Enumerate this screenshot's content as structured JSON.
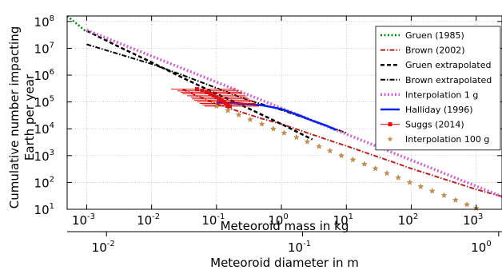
{
  "chart_data": {
    "type": "line",
    "ylabel_line1": "Cumulative number impacting",
    "ylabel_line2": "Earth per year",
    "xlabel": "Meteoroid mass in kg",
    "x2label": "Meteoroid diameter in m",
    "x_scale": "log",
    "y_scale": "log",
    "xlim": [
      0.0005,
      2500
    ],
    "ylim": [
      10,
      160000000
    ],
    "x2lim": [
      0.0063,
      1.04
    ],
    "grid": true,
    "legend_placement": "top-right",
    "x_ticks": [
      {
        "v": 0.001,
        "base": "10",
        "exp": "-3"
      },
      {
        "v": 0.01,
        "base": "10",
        "exp": "-2"
      },
      {
        "v": 0.1,
        "base": "10",
        "exp": "-1"
      },
      {
        "v": 1,
        "base": "10",
        "exp": "0"
      },
      {
        "v": 10,
        "base": "10",
        "exp": "1"
      },
      {
        "v": 100,
        "base": "10",
        "exp": "2"
      },
      {
        "v": 1000,
        "base": "10",
        "exp": "3"
      }
    ],
    "y_ticks": [
      {
        "v": 10,
        "base": "10",
        "exp": "1"
      },
      {
        "v": 100,
        "base": "10",
        "exp": "2"
      },
      {
        "v": 1000,
        "base": "10",
        "exp": "3"
      },
      {
        "v": 10000,
        "base": "10",
        "exp": "4"
      },
      {
        "v": 100000,
        "base": "10",
        "exp": "5"
      },
      {
        "v": 1000000,
        "base": "10",
        "exp": "6"
      },
      {
        "v": 10000000,
        "base": "10",
        "exp": "7"
      },
      {
        "v": 100000000,
        "base": "10",
        "exp": "8"
      }
    ],
    "x2_ticks": [
      {
        "v": 0.01,
        "base": "10",
        "exp": "-2"
      },
      {
        "v": 0.1,
        "base": "10",
        "exp": "-1"
      },
      {
        "v": 1,
        "base": "10",
        "exp": "0"
      }
    ],
    "series": [
      {
        "name": "Gruen (1985)",
        "color": "#008000",
        "style": "dotted",
        "width": 2.5,
        "x": [
          0.0005,
          0.00095
        ],
        "y": [
          160000000,
          45000000
        ]
      },
      {
        "name": "Brown (2002)",
        "color": "#b22222",
        "style": "dashdot",
        "width": 2,
        "x": [
          0.03,
          0.05,
          0.1,
          0.2,
          0.5,
          1,
          2,
          5,
          10,
          50,
          100,
          500,
          1000,
          2500
        ],
        "y": [
          300000,
          170000,
          85000,
          48000,
          24000,
          15000,
          8500,
          4000,
          2300,
          600,
          330,
          95,
          55,
          30
        ]
      },
      {
        "name": "Gruen extrapolated",
        "color": "#000000",
        "style": "dashed",
        "width": 2.5,
        "x": [
          0.001,
          0.003,
          0.01,
          0.03,
          0.1,
          0.3,
          1,
          3
        ],
        "y": [
          45000000,
          12000000,
          3000000,
          800000,
          200000,
          60000,
          15000,
          4000
        ]
      },
      {
        "name": "Brown extrapolated",
        "color": "#000000",
        "style": "dashdot",
        "width": 2,
        "x": [
          0.001,
          0.01,
          0.03,
          0.1,
          0.3,
          1,
          3,
          10
        ],
        "y": [
          14000000,
          2600000,
          1000000,
          330000,
          120000,
          50000,
          20000,
          7000
        ]
      },
      {
        "name": "Interpolation 1 g",
        "color": "#cc66cc",
        "style": "dotted",
        "width": 3.5,
        "x": [
          0.001,
          2500
        ],
        "y": [
          48000000,
          30
        ]
      },
      {
        "name": "Halliday (1996)",
        "color": "#0022ee",
        "style": "solid",
        "width": 2.5,
        "x": [
          0.1,
          0.2,
          0.5,
          1,
          2,
          3,
          5,
          7
        ],
        "y": [
          100000,
          90000,
          75000,
          55000,
          30000,
          20000,
          13000,
          9000
        ]
      },
      {
        "name": "Suggs (2014)",
        "color": "#dd1111",
        "style": "errorbar",
        "width": 1,
        "points": [
          {
            "x": 0.05,
            "y": 300000,
            "xerr_lo": 0.02,
            "xerr_hi": 0.2
          },
          {
            "x": 0.06,
            "y": 260000,
            "xerr_lo": 0.025,
            "xerr_hi": 0.22
          },
          {
            "x": 0.07,
            "y": 230000,
            "xerr_lo": 0.028,
            "xerr_hi": 0.25
          },
          {
            "x": 0.08,
            "y": 200000,
            "xerr_lo": 0.03,
            "xerr_hi": 0.25
          },
          {
            "x": 0.09,
            "y": 170000,
            "xerr_lo": 0.035,
            "xerr_hi": 0.28
          },
          {
            "x": 0.1,
            "y": 150000,
            "xerr_lo": 0.04,
            "xerr_hi": 0.3
          },
          {
            "x": 0.11,
            "y": 130000,
            "xerr_lo": 0.042,
            "xerr_hi": 0.32
          },
          {
            "x": 0.12,
            "y": 115000,
            "xerr_lo": 0.045,
            "xerr_hi": 0.35
          },
          {
            "x": 0.13,
            "y": 100000,
            "xerr_lo": 0.05,
            "xerr_hi": 0.38
          },
          {
            "x": 0.14,
            "y": 88000,
            "xerr_lo": 0.055,
            "xerr_hi": 0.4
          },
          {
            "x": 0.15,
            "y": 78000,
            "xerr_lo": 0.06,
            "xerr_hi": 0.42
          },
          {
            "x": 0.16,
            "y": 70000,
            "xerr_lo": 0.065,
            "xerr_hi": 0.45
          }
        ]
      },
      {
        "name": "Interpolation 100 g",
        "color": "#c8904a",
        "style": "star",
        "width": 1,
        "x": [
          0.1,
          0.15,
          0.22,
          0.33,
          0.5,
          0.75,
          1.1,
          1.7,
          2.5,
          3.8,
          5.6,
          8.4,
          12.6,
          19,
          28,
          42,
          63,
          95,
          140,
          210,
          320,
          480,
          720,
          1000
        ],
        "y": [
          70000,
          48000,
          33000,
          22000,
          15000,
          10000,
          7000,
          4800,
          3300,
          2200,
          1500,
          1000,
          700,
          480,
          330,
          220,
          150,
          100,
          70,
          48,
          33,
          22,
          15,
          11
        ]
      }
    ]
  }
}
